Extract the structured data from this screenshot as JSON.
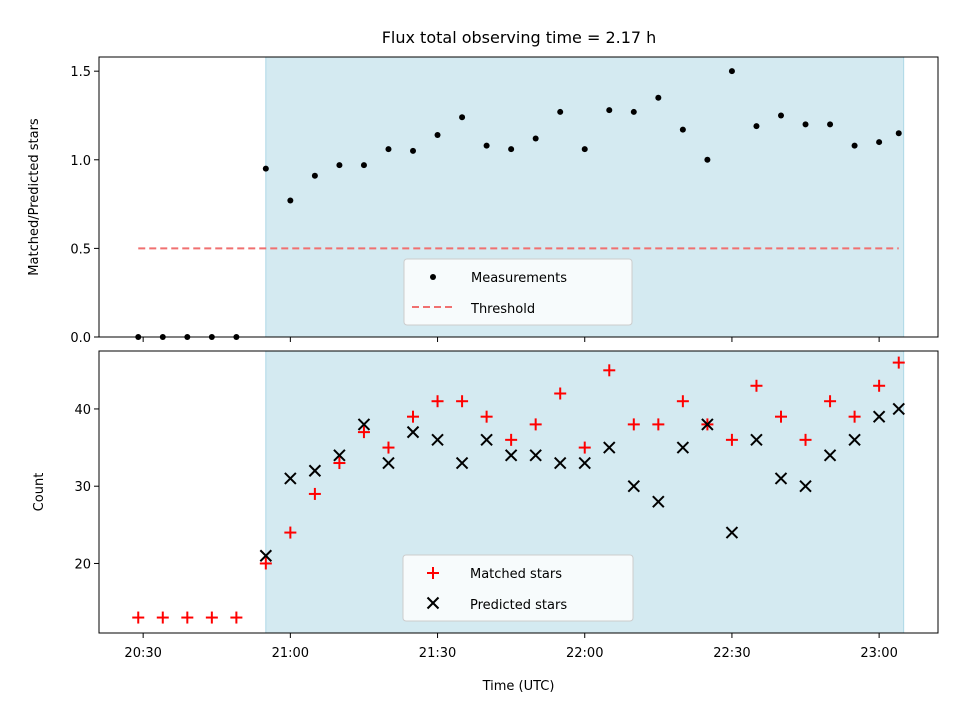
{
  "title": "Flux total observing time = 2.17 h",
  "xlabel": "Time (UTC)",
  "x_tick_labels": [
    "20:30",
    "21:00",
    "21:30",
    "22:00",
    "22:30",
    "23:00"
  ],
  "colors": {
    "shade": "#d4eaf1",
    "shade_edge": "#add8e6",
    "threshold": "#f07070",
    "matched": "#ff0000",
    "predicted": "#000000",
    "measurements": "#000000"
  },
  "chart_data": [
    {
      "type": "scatter",
      "panel": "top",
      "ylabel": "Matched/Predicted stars",
      "ylim": [
        0.0,
        1.58
      ],
      "y_ticks": [
        "0.0",
        "0.5",
        "1.0",
        "1.5"
      ],
      "x_range": [
        "20:21",
        "23:12"
      ],
      "shaded_interval": [
        "20:55",
        "23:05"
      ],
      "threshold": {
        "name": "Threshold",
        "value": 0.5,
        "x_start": "20:29",
        "x_end": "23:04"
      },
      "legend": {
        "placement": "lower center",
        "entries": [
          "Measurements",
          "Threshold"
        ]
      },
      "series": [
        {
          "name": "Measurements",
          "x": [
            "20:29",
            "20:34",
            "20:39",
            "20:44",
            "20:49",
            "20:55",
            "21:00",
            "21:05",
            "21:10",
            "21:15",
            "21:20",
            "21:25",
            "21:30",
            "21:35",
            "21:40",
            "21:45",
            "21:50",
            "21:55",
            "22:00",
            "22:05",
            "22:10",
            "22:15",
            "22:20",
            "22:25",
            "22:30",
            "22:35",
            "22:40",
            "22:45",
            "22:50",
            "22:55",
            "23:00",
            "23:04"
          ],
          "y": [
            0,
            0,
            0,
            0,
            0,
            0.95,
            0.77,
            0.91,
            0.97,
            0.97,
            1.06,
            1.05,
            1.14,
            1.24,
            1.08,
            1.06,
            1.12,
            1.27,
            1.06,
            1.28,
            1.27,
            1.35,
            1.17,
            1.0,
            1.5,
            1.19,
            1.25,
            1.2,
            1.2,
            1.08,
            1.1,
            1.15
          ]
        }
      ]
    },
    {
      "type": "scatter",
      "panel": "bottom",
      "ylabel": "Count",
      "ylim": [
        11,
        47.5
      ],
      "y_ticks": [
        "20",
        "30",
        "40"
      ],
      "x_range": [
        "20:21",
        "23:12"
      ],
      "shaded_interval": [
        "20:55",
        "23:05"
      ],
      "legend": {
        "placement": "lower center",
        "entries": [
          "Matched stars",
          "Predicted stars"
        ]
      },
      "series": [
        {
          "name": "Matched stars",
          "marker": "plus",
          "x": [
            "20:29",
            "20:34",
            "20:39",
            "20:44",
            "20:49",
            "20:55",
            "21:00",
            "21:05",
            "21:10",
            "21:15",
            "21:20",
            "21:25",
            "21:30",
            "21:35",
            "21:40",
            "21:45",
            "21:50",
            "21:55",
            "22:00",
            "22:05",
            "22:10",
            "22:15",
            "22:20",
            "22:25",
            "22:30",
            "22:35",
            "22:40",
            "22:45",
            "22:50",
            "22:55",
            "23:00",
            "23:04"
          ],
          "y": [
            13,
            13,
            13,
            13,
            13,
            20,
            24,
            29,
            33,
            37,
            35,
            39,
            41,
            41,
            39,
            36,
            38,
            42,
            35,
            45,
            38,
            38,
            41,
            38,
            36,
            43,
            39,
            36,
            41,
            39,
            43,
            46
          ]
        },
        {
          "name": "Predicted stars",
          "marker": "x",
          "x": [
            "20:55",
            "21:00",
            "21:05",
            "21:10",
            "21:15",
            "21:20",
            "21:25",
            "21:30",
            "21:35",
            "21:40",
            "21:45",
            "21:50",
            "21:55",
            "22:00",
            "22:05",
            "22:10",
            "22:15",
            "22:20",
            "22:25",
            "22:30",
            "22:35",
            "22:40",
            "22:45",
            "22:50",
            "22:55",
            "23:00",
            "23:04"
          ],
          "y": [
            21,
            31,
            32,
            34,
            38,
            33,
            37,
            36,
            33,
            36,
            34,
            34,
            33,
            33,
            35,
            30,
            28,
            35,
            38,
            24,
            36,
            31,
            30,
            34,
            36,
            39,
            40
          ]
        }
      ]
    }
  ]
}
